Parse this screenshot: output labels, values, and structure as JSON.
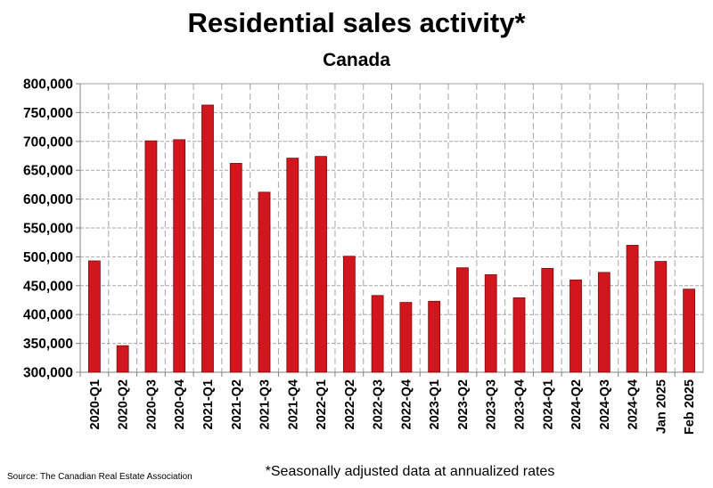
{
  "chart_data": {
    "type": "bar",
    "title": "Residential sales activity*",
    "subtitle": "Canada",
    "xlabel": "",
    "ylabel": "",
    "ylim": [
      300000,
      800000
    ],
    "yticks": [
      300000,
      350000,
      400000,
      450000,
      500000,
      550000,
      600000,
      650000,
      700000,
      750000,
      800000
    ],
    "ytick_labels": [
      "300,000",
      "350,000",
      "400,000",
      "450,000",
      "500,000",
      "550,000",
      "600,000",
      "650,000",
      "700,000",
      "750,000",
      "800,000"
    ],
    "grid": true,
    "categories": [
      "2020-Q1",
      "2020-Q2",
      "2020-Q3",
      "2020-Q4",
      "2021-Q1",
      "2021-Q2",
      "2021-Q3",
      "2021-Q4",
      "2022-Q1",
      "2022-Q2",
      "2022-Q3",
      "2022-Q4",
      "2023-Q1",
      "2023-Q2",
      "2023-Q3",
      "2023-Q4",
      "2024-Q1",
      "2024-Q2",
      "2024-Q3",
      "2024-Q4",
      "Jan 2025",
      "Feb 2025"
    ],
    "values": [
      493000,
      346000,
      701000,
      703000,
      763000,
      662000,
      612000,
      671000,
      674000,
      501000,
      433000,
      421000,
      423000,
      481000,
      469000,
      429000,
      480000,
      460000,
      473000,
      520000,
      492000,
      444000
    ],
    "bar_color": "#d2161e",
    "footnote": "*Seasonally adjusted data at annualized rates",
    "source": "Source: The Canadian Real Estate Association"
  }
}
